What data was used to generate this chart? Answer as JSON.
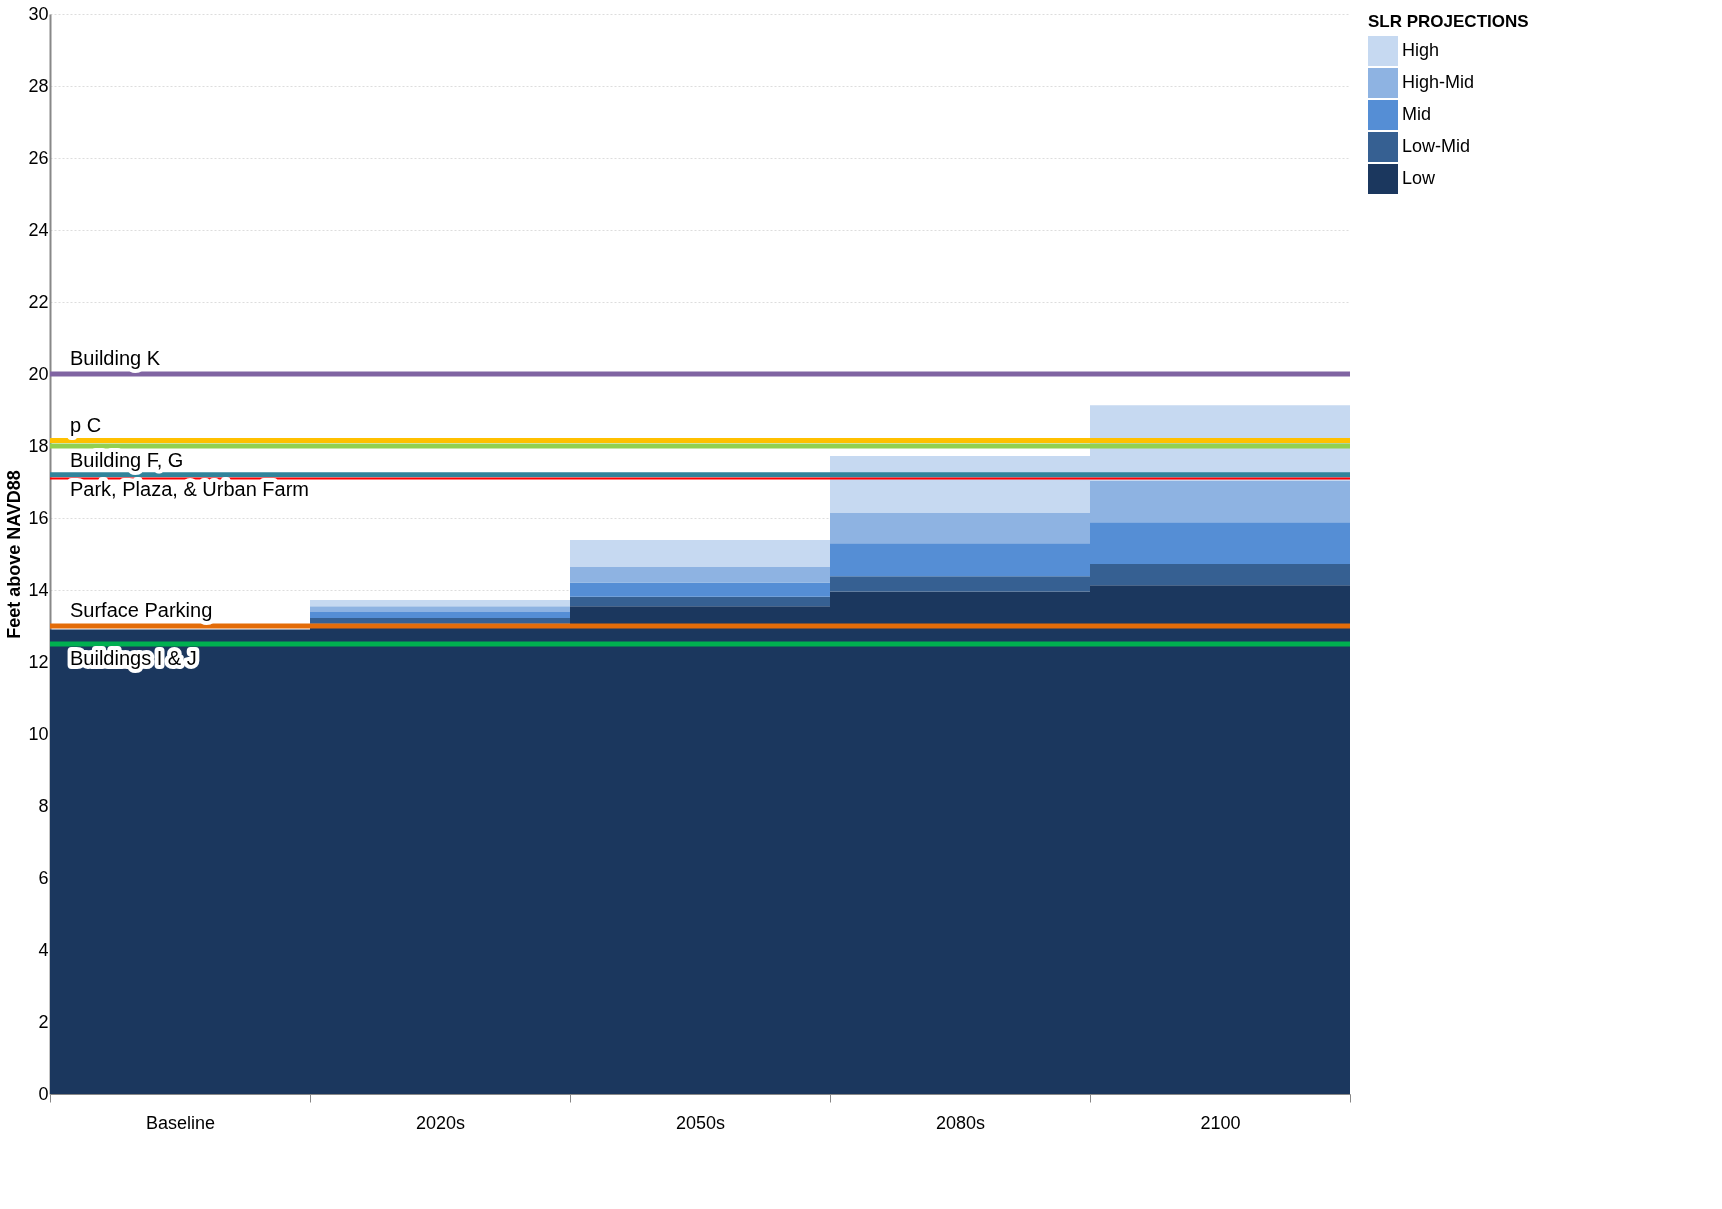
{
  "chart_data": {
    "type": "bar",
    "stacked": true,
    "ylabel": "Feet above NAVD88",
    "legend_title": "SLR PROJECTIONS",
    "legend": "right",
    "grid": "y",
    "categories": [
      "Baseline",
      "2020s",
      "2050s",
      "2080s",
      "2100"
    ],
    "ylim": [
      0,
      30
    ],
    "yticks": [
      0,
      2,
      4,
      6,
      8,
      10,
      12,
      14,
      16,
      18,
      20,
      22,
      24,
      26,
      28,
      30
    ],
    "series": [
      {
        "name": "Low",
        "color": "#1b375e",
        "values": [
          12.9,
          13.06,
          13.55,
          13.96,
          14.13
        ]
      },
      {
        "name": "Low-Mid",
        "color": "#366092",
        "values": [
          null,
          0.16,
          0.26,
          0.42,
          0.59
        ]
      },
      {
        "name": "Mid",
        "color": "#558ed5",
        "values": [
          null,
          0.17,
          0.4,
          0.92,
          1.16
        ]
      },
      {
        "name": "High-Mid",
        "color": "#8eb3e2",
        "values": [
          null,
          0.16,
          0.43,
          0.84,
          1.16
        ]
      },
      {
        "name": "High",
        "color": "#c6d9f1",
        "values": [
          null,
          0.17,
          0.75,
          1.58,
          2.09
        ]
      }
    ],
    "ref_lines": [
      {
        "axis": "y",
        "value": 20,
        "label": "Building K",
        "color": "#8064a2"
      },
      {
        "axis": "y",
        "value": 18.15,
        "label": "p C",
        "color": "#ffc000"
      },
      {
        "axis": "y",
        "value": 18,
        "label": "Building F, G",
        "color": "#92d050"
      },
      {
        "axis": "y",
        "value": 17.2,
        "label": "Park, Plaza, & Urban Farm",
        "color": "#31849b"
      },
      {
        "axis": "y",
        "value": 17.1,
        "color": "#ff0000"
      },
      {
        "axis": "y",
        "value": 13,
        "label": "Surface Parking",
        "color": "#e36c09"
      },
      {
        "axis": "y",
        "value": 12.5,
        "label": "Buildings I & J",
        "color": "#00b050"
      }
    ]
  }
}
